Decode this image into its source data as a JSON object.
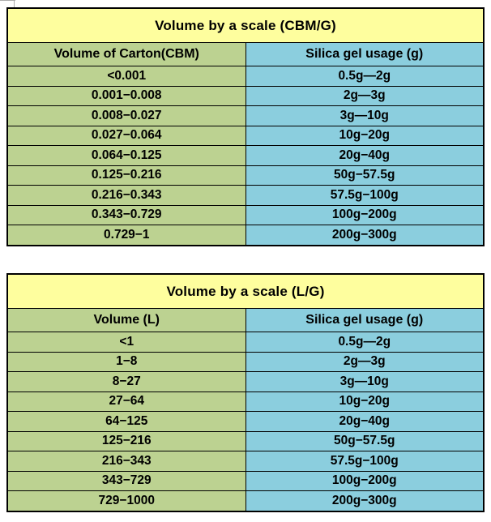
{
  "colors": {
    "title_bg": "#FEFE9E",
    "volume_col_bg": "#BCD291",
    "usage_col_bg": "#8BCEDE",
    "border": "#000000",
    "text": "#000000",
    "gridline": "#ACACAC"
  },
  "chart_data": [
    {
      "type": "table",
      "title": "Volume by a scale (CBM/G)",
      "columns": [
        "Volume of Carton(CBM)",
        "Silica gel usage (g)"
      ],
      "rows": [
        [
          "<0.001",
          "0.5g—2g"
        ],
        [
          "0.001−0.008",
          "2g—3g"
        ],
        [
          "0.008−0.027",
          "3g—10g"
        ],
        [
          "0.027−0.064",
          "10g−20g"
        ],
        [
          "0.064−0.125",
          "20g−40g"
        ],
        [
          "0.125−0.216",
          "50g−57.5g"
        ],
        [
          "0.216−0.343",
          "57.5g−100g"
        ],
        [
          "0.343−0.729",
          "100g−200g"
        ],
        [
          "0.729−1",
          "200g−300g"
        ]
      ]
    },
    {
      "type": "table",
      "title": "Volume by a scale (L/G)",
      "columns": [
        "Volume (L)",
        "Silica gel usage (g)"
      ],
      "rows": [
        [
          "<1",
          "0.5g—2g"
        ],
        [
          "1−8",
          "2g—3g"
        ],
        [
          "8−27",
          "3g—10g"
        ],
        [
          "27−64",
          "10g−20g"
        ],
        [
          "64−125",
          "20g−40g"
        ],
        [
          "125−216",
          "50g−57.5g"
        ],
        [
          "216−343",
          "57.5g−100g"
        ],
        [
          "343−729",
          "100g−200g"
        ],
        [
          "729−1000",
          "200g−300g"
        ]
      ]
    }
  ]
}
